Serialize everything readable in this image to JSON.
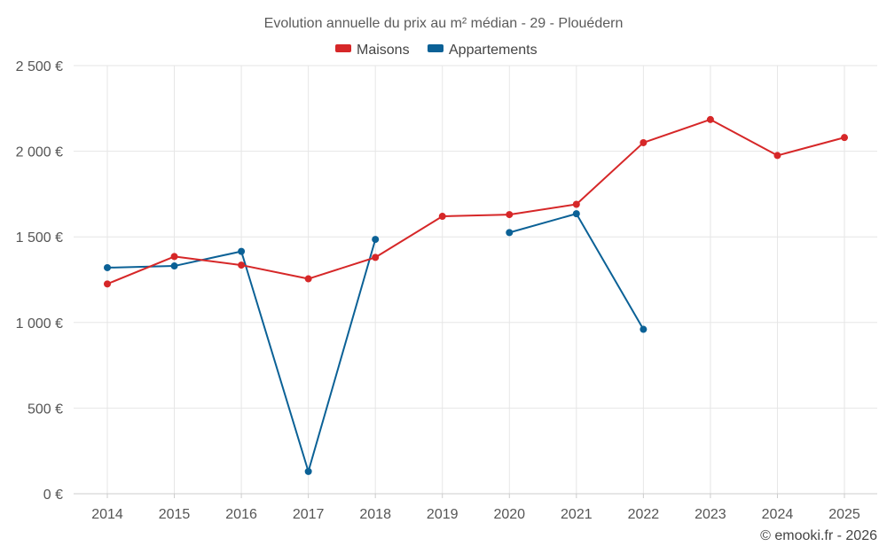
{
  "chart_data": {
    "type": "line",
    "title": "Evolution annuelle du prix au m² médian - 29 - Plouédern",
    "categories": [
      "2014",
      "2015",
      "2016",
      "2017",
      "2018",
      "2019",
      "2020",
      "2021",
      "2022",
      "2023",
      "2024",
      "2025"
    ],
    "series": [
      {
        "name": "Maisons",
        "color": "#d62728",
        "values": [
          1225,
          1385,
          1335,
          1255,
          1380,
          1620,
          1630,
          1690,
          2050,
          2185,
          1975,
          2080
        ]
      },
      {
        "name": "Appartements",
        "color": "#0b6196",
        "values": [
          1320,
          1330,
          1415,
          130,
          1485,
          null,
          1525,
          1635,
          960,
          null,
          null,
          null
        ]
      }
    ],
    "ylim": [
      0,
      2500
    ],
    "yticks": [
      0,
      500,
      1000,
      1500,
      2000,
      2500
    ],
    "ytick_labels": [
      "0 €",
      "500 €",
      "1 000 €",
      "1 500 €",
      "2 000 €",
      "2 500 €"
    ],
    "xlabel": "",
    "ylabel": "",
    "legend_position": "top-center",
    "grid": true
  },
  "credit": "© emooki.fr - 2026"
}
